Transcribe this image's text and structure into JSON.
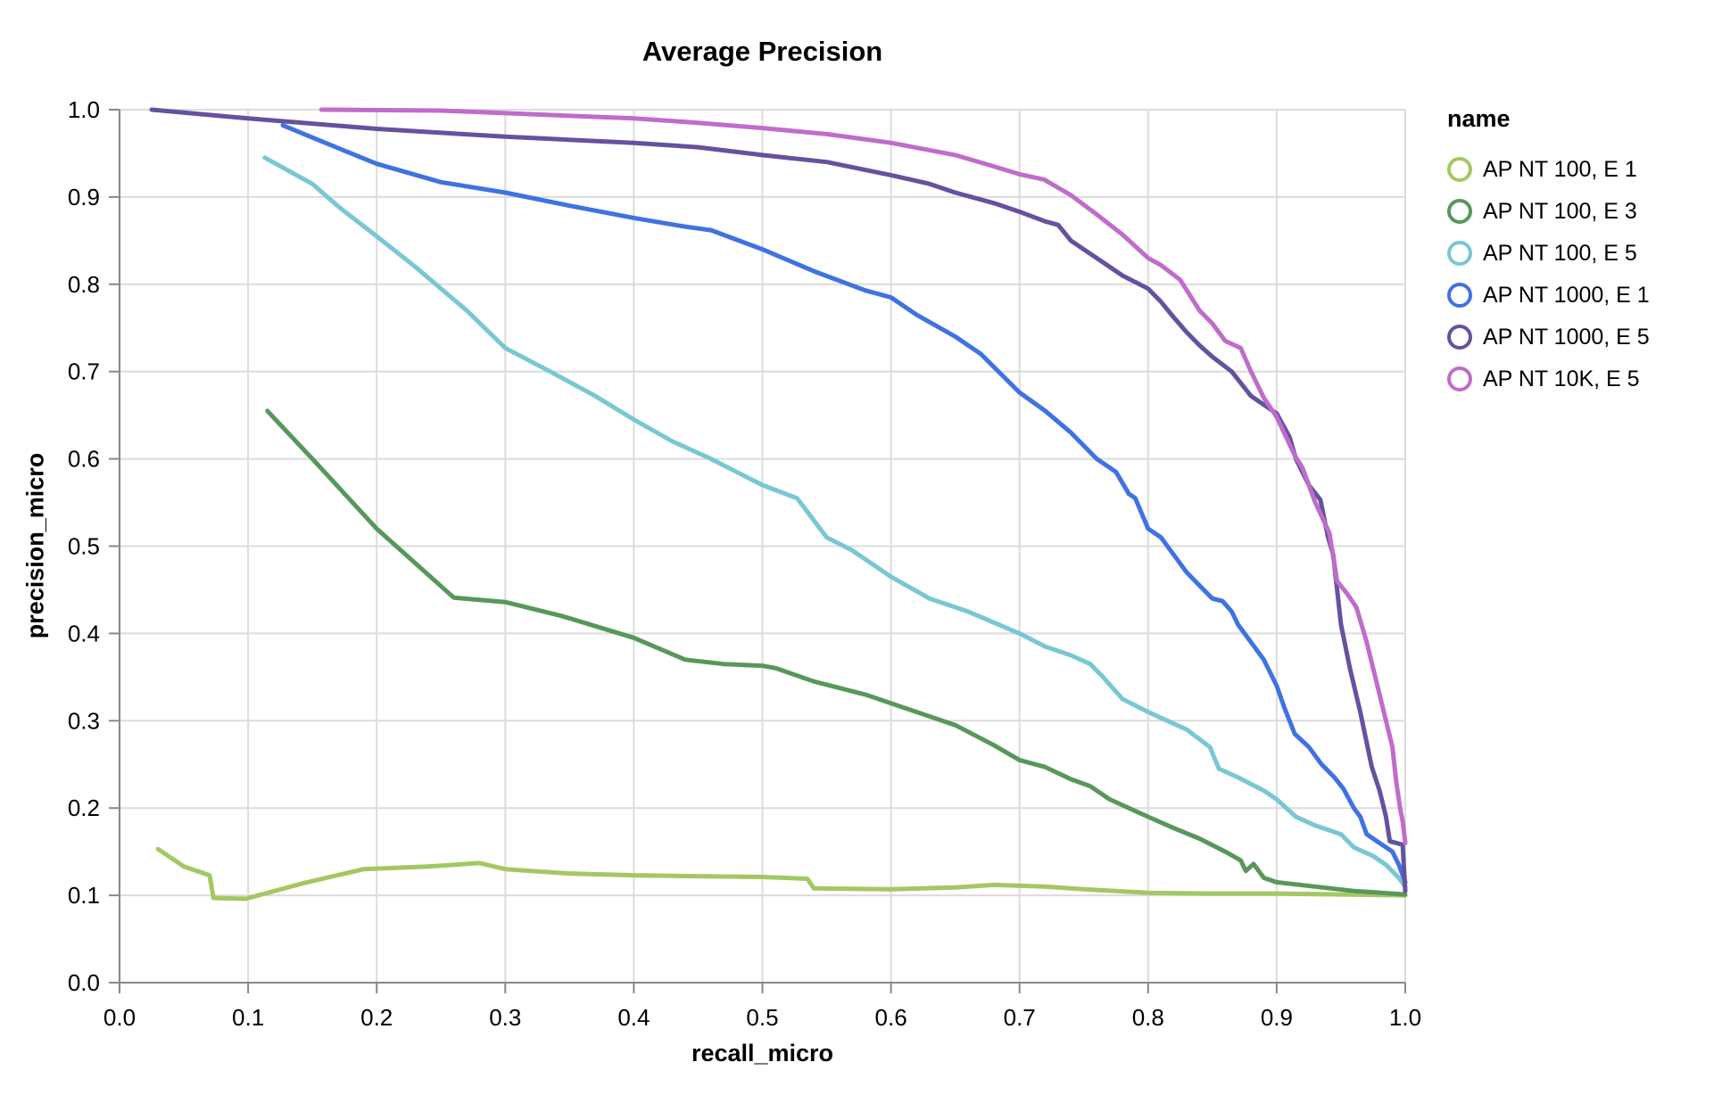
{
  "chart_data": {
    "type": "line",
    "title": "Average Precision",
    "xlabel": "recall_micro",
    "ylabel": "precision_micro",
    "legend_title": "name",
    "legend_position": "right",
    "grid": true,
    "xlim": [
      0.0,
      1.0
    ],
    "ylim": [
      0.0,
      1.0
    ],
    "x_ticks": [
      {
        "value": 0.0,
        "label": "0.0"
      },
      {
        "value": 0.1,
        "label": "0.1"
      },
      {
        "value": 0.2,
        "label": "0.2"
      },
      {
        "value": 0.3,
        "label": "0.3"
      },
      {
        "value": 0.4,
        "label": "0.4"
      },
      {
        "value": 0.5,
        "label": "0.5"
      },
      {
        "value": 0.6,
        "label": "0.6"
      },
      {
        "value": 0.7,
        "label": "0.7"
      },
      {
        "value": 0.8,
        "label": "0.8"
      },
      {
        "value": 0.9,
        "label": "0.9"
      },
      {
        "value": 1.0,
        "label": "1.0"
      }
    ],
    "y_ticks": [
      {
        "value": 0.0,
        "label": "0.0"
      },
      {
        "value": 0.1,
        "label": "0.1"
      },
      {
        "value": 0.2,
        "label": "0.2"
      },
      {
        "value": 0.3,
        "label": "0.3"
      },
      {
        "value": 0.4,
        "label": "0.4"
      },
      {
        "value": 0.5,
        "label": "0.5"
      },
      {
        "value": 0.6,
        "label": "0.6"
      },
      {
        "value": 0.7,
        "label": "0.7"
      },
      {
        "value": 0.8,
        "label": "0.8"
      },
      {
        "value": 0.9,
        "label": "0.9"
      },
      {
        "value": 1.0,
        "label": "1.0"
      }
    ],
    "colors": {
      "grid": "#dcdcdc",
      "axis": "#888888",
      "text": "#000000"
    },
    "series": [
      {
        "name": "AP NT 100, E 1",
        "color": "#a3c861",
        "points": [
          [
            0.03,
            0.153
          ],
          [
            0.05,
            0.133
          ],
          [
            0.07,
            0.123
          ],
          [
            0.073,
            0.097
          ],
          [
            0.098,
            0.096
          ],
          [
            0.143,
            0.114
          ],
          [
            0.19,
            0.13
          ],
          [
            0.24,
            0.133
          ],
          [
            0.28,
            0.137
          ],
          [
            0.3,
            0.13
          ],
          [
            0.35,
            0.125
          ],
          [
            0.4,
            0.123
          ],
          [
            0.45,
            0.122
          ],
          [
            0.5,
            0.121
          ],
          [
            0.535,
            0.119
          ],
          [
            0.54,
            0.108
          ],
          [
            0.6,
            0.107
          ],
          [
            0.65,
            0.109
          ],
          [
            0.68,
            0.112
          ],
          [
            0.72,
            0.11
          ],
          [
            0.75,
            0.107
          ],
          [
            0.8,
            0.103
          ],
          [
            0.85,
            0.102
          ],
          [
            0.9,
            0.102
          ],
          [
            0.95,
            0.101
          ],
          [
            1.0,
            0.1
          ]
        ]
      },
      {
        "name": "AP NT 100, E 3",
        "color": "#57985a",
        "points": [
          [
            0.115,
            0.655
          ],
          [
            0.15,
            0.6
          ],
          [
            0.2,
            0.52
          ],
          [
            0.26,
            0.441
          ],
          [
            0.3,
            0.436
          ],
          [
            0.344,
            0.42
          ],
          [
            0.4,
            0.395
          ],
          [
            0.44,
            0.37
          ],
          [
            0.47,
            0.365
          ],
          [
            0.5,
            0.363
          ],
          [
            0.511,
            0.36
          ],
          [
            0.54,
            0.345
          ],
          [
            0.58,
            0.33
          ],
          [
            0.62,
            0.31
          ],
          [
            0.65,
            0.295
          ],
          [
            0.68,
            0.272
          ],
          [
            0.7,
            0.255
          ],
          [
            0.72,
            0.247
          ],
          [
            0.74,
            0.233
          ],
          [
            0.755,
            0.225
          ],
          [
            0.77,
            0.21
          ],
          [
            0.8,
            0.19
          ],
          [
            0.82,
            0.177
          ],
          [
            0.84,
            0.165
          ],
          [
            0.86,
            0.15
          ],
          [
            0.872,
            0.14
          ],
          [
            0.876,
            0.128
          ],
          [
            0.882,
            0.136
          ],
          [
            0.89,
            0.12
          ],
          [
            0.9,
            0.115
          ],
          [
            0.93,
            0.11
          ],
          [
            0.96,
            0.105
          ],
          [
            1.0,
            0.101
          ]
        ]
      },
      {
        "name": "AP NT 100, E 5",
        "color": "#79c7d5",
        "points": [
          [
            0.113,
            0.945
          ],
          [
            0.15,
            0.915
          ],
          [
            0.171,
            0.888
          ],
          [
            0.2,
            0.855
          ],
          [
            0.23,
            0.82
          ],
          [
            0.27,
            0.77
          ],
          [
            0.3,
            0.727
          ],
          [
            0.335,
            0.7
          ],
          [
            0.37,
            0.672
          ],
          [
            0.4,
            0.645
          ],
          [
            0.43,
            0.62
          ],
          [
            0.46,
            0.6
          ],
          [
            0.48,
            0.585
          ],
          [
            0.5,
            0.57
          ],
          [
            0.527,
            0.555
          ],
          [
            0.55,
            0.51
          ],
          [
            0.57,
            0.495
          ],
          [
            0.6,
            0.465
          ],
          [
            0.63,
            0.44
          ],
          [
            0.66,
            0.425
          ],
          [
            0.7,
            0.4
          ],
          [
            0.72,
            0.385
          ],
          [
            0.74,
            0.375
          ],
          [
            0.755,
            0.365
          ],
          [
            0.765,
            0.35
          ],
          [
            0.78,
            0.325
          ],
          [
            0.8,
            0.31
          ],
          [
            0.815,
            0.3
          ],
          [
            0.83,
            0.29
          ],
          [
            0.848,
            0.27
          ],
          [
            0.855,
            0.245
          ],
          [
            0.87,
            0.235
          ],
          [
            0.89,
            0.22
          ],
          [
            0.9,
            0.21
          ],
          [
            0.915,
            0.19
          ],
          [
            0.93,
            0.18
          ],
          [
            0.95,
            0.17
          ],
          [
            0.96,
            0.155
          ],
          [
            0.975,
            0.145
          ],
          [
            0.985,
            0.135
          ],
          [
            0.995,
            0.12
          ],
          [
            1.0,
            0.11
          ]
        ]
      },
      {
        "name": "AP NT 1000, E 1",
        "color": "#3f72e3",
        "points": [
          [
            0.127,
            0.982
          ],
          [
            0.16,
            0.962
          ],
          [
            0.2,
            0.938
          ],
          [
            0.25,
            0.917
          ],
          [
            0.3,
            0.905
          ],
          [
            0.35,
            0.89
          ],
          [
            0.4,
            0.876
          ],
          [
            0.44,
            0.866
          ],
          [
            0.46,
            0.862
          ],
          [
            0.5,
            0.84
          ],
          [
            0.54,
            0.815
          ],
          [
            0.58,
            0.793
          ],
          [
            0.6,
            0.785
          ],
          [
            0.62,
            0.765
          ],
          [
            0.65,
            0.74
          ],
          [
            0.67,
            0.72
          ],
          [
            0.7,
            0.676
          ],
          [
            0.72,
            0.655
          ],
          [
            0.74,
            0.63
          ],
          [
            0.76,
            0.6
          ],
          [
            0.775,
            0.585
          ],
          [
            0.785,
            0.56
          ],
          [
            0.79,
            0.555
          ],
          [
            0.8,
            0.52
          ],
          [
            0.81,
            0.51
          ],
          [
            0.82,
            0.49
          ],
          [
            0.83,
            0.47
          ],
          [
            0.84,
            0.455
          ],
          [
            0.85,
            0.44
          ],
          [
            0.858,
            0.437
          ],
          [
            0.865,
            0.425
          ],
          [
            0.87,
            0.41
          ],
          [
            0.88,
            0.39
          ],
          [
            0.89,
            0.37
          ],
          [
            0.9,
            0.34
          ],
          [
            0.906,
            0.315
          ],
          [
            0.914,
            0.285
          ],
          [
            0.925,
            0.27
          ],
          [
            0.935,
            0.25
          ],
          [
            0.945,
            0.235
          ],
          [
            0.952,
            0.222
          ],
          [
            0.96,
            0.2
          ],
          [
            0.965,
            0.19
          ],
          [
            0.97,
            0.17
          ],
          [
            0.975,
            0.165
          ],
          [
            0.98,
            0.16
          ],
          [
            0.99,
            0.15
          ],
          [
            0.995,
            0.135
          ],
          [
            1.0,
            0.115
          ]
        ]
      },
      {
        "name": "AP NT 1000, E 5",
        "color": "#65519f",
        "points": [
          [
            0.025,
            1.0
          ],
          [
            0.1,
            0.99
          ],
          [
            0.2,
            0.978
          ],
          [
            0.3,
            0.969
          ],
          [
            0.4,
            0.962
          ],
          [
            0.45,
            0.957
          ],
          [
            0.5,
            0.948
          ],
          [
            0.55,
            0.94
          ],
          [
            0.6,
            0.925
          ],
          [
            0.63,
            0.915
          ],
          [
            0.65,
            0.905
          ],
          [
            0.68,
            0.893
          ],
          [
            0.7,
            0.883
          ],
          [
            0.72,
            0.872
          ],
          [
            0.73,
            0.868
          ],
          [
            0.74,
            0.85
          ],
          [
            0.76,
            0.83
          ],
          [
            0.78,
            0.81
          ],
          [
            0.8,
            0.795
          ],
          [
            0.81,
            0.78
          ],
          [
            0.82,
            0.762
          ],
          [
            0.83,
            0.745
          ],
          [
            0.84,
            0.73
          ],
          [
            0.85,
            0.717
          ],
          [
            0.865,
            0.7
          ],
          [
            0.88,
            0.672
          ],
          [
            0.89,
            0.662
          ],
          [
            0.9,
            0.652
          ],
          [
            0.91,
            0.625
          ],
          [
            0.915,
            0.6
          ],
          [
            0.925,
            0.57
          ],
          [
            0.934,
            0.553
          ],
          [
            0.94,
            0.51
          ],
          [
            0.944,
            0.49
          ],
          [
            0.95,
            0.41
          ],
          [
            0.957,
            0.36
          ],
          [
            0.965,
            0.31
          ],
          [
            0.974,
            0.247
          ],
          [
            0.98,
            0.22
          ],
          [
            0.985,
            0.19
          ],
          [
            0.988,
            0.162
          ],
          [
            0.998,
            0.158
          ],
          [
            1.0,
            0.105
          ]
        ]
      },
      {
        "name": "AP NT 10K, E 5",
        "color": "#bf6cca",
        "points": [
          [
            0.157,
            1.0
          ],
          [
            0.25,
            0.999
          ],
          [
            0.3,
            0.996
          ],
          [
            0.35,
            0.993
          ],
          [
            0.4,
            0.99
          ],
          [
            0.45,
            0.985
          ],
          [
            0.5,
            0.979
          ],
          [
            0.55,
            0.972
          ],
          [
            0.6,
            0.962
          ],
          [
            0.65,
            0.948
          ],
          [
            0.68,
            0.935
          ],
          [
            0.7,
            0.926
          ],
          [
            0.719,
            0.92
          ],
          [
            0.74,
            0.902
          ],
          [
            0.76,
            0.88
          ],
          [
            0.78,
            0.857
          ],
          [
            0.8,
            0.83
          ],
          [
            0.81,
            0.822
          ],
          [
            0.825,
            0.805
          ],
          [
            0.84,
            0.77
          ],
          [
            0.85,
            0.755
          ],
          [
            0.86,
            0.735
          ],
          [
            0.872,
            0.727
          ],
          [
            0.88,
            0.7
          ],
          [
            0.89,
            0.67
          ],
          [
            0.9,
            0.648
          ],
          [
            0.914,
            0.604
          ],
          [
            0.92,
            0.59
          ],
          [
            0.93,
            0.55
          ],
          [
            0.941,
            0.515
          ],
          [
            0.947,
            0.46
          ],
          [
            0.955,
            0.445
          ],
          [
            0.962,
            0.43
          ],
          [
            0.97,
            0.39
          ],
          [
            0.975,
            0.36
          ],
          [
            0.98,
            0.33
          ],
          [
            0.985,
            0.3
          ],
          [
            0.99,
            0.27
          ],
          [
            0.993,
            0.23
          ],
          [
            0.996,
            0.2
          ],
          [
            0.998,
            0.185
          ],
          [
            1.0,
            0.16
          ]
        ]
      }
    ]
  }
}
